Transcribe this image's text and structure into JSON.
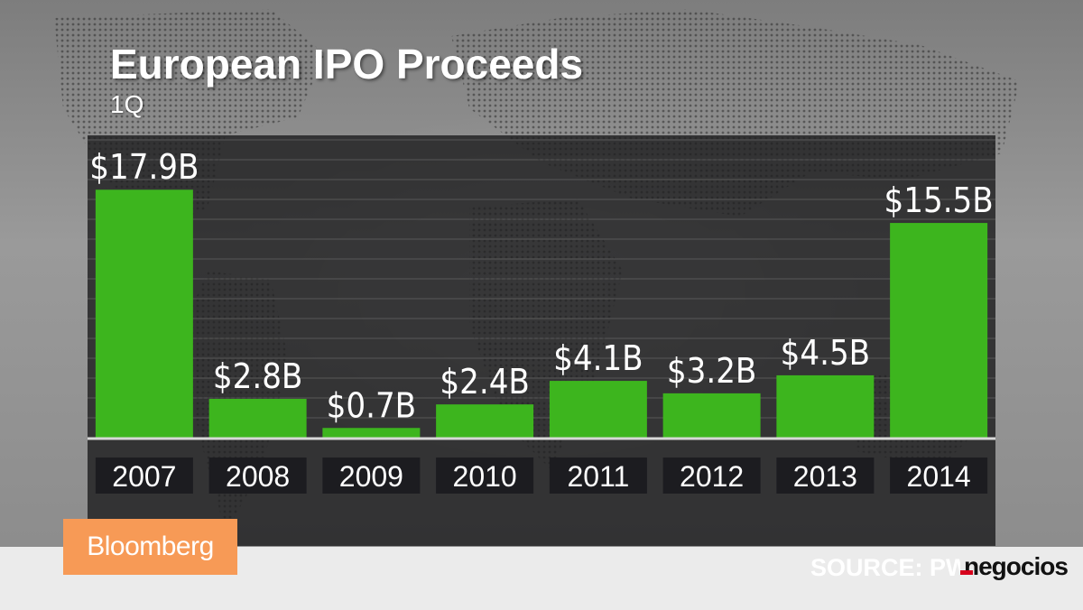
{
  "chart_data": {
    "type": "bar",
    "title": "European IPO Proceeds",
    "subtitle": "1Q",
    "categories": [
      "2007",
      "2008",
      "2009",
      "2010",
      "2011",
      "2012",
      "2013",
      "2014"
    ],
    "values": [
      17.9,
      2.8,
      0.7,
      2.4,
      4.1,
      3.2,
      4.5,
      15.5
    ],
    "data_labels": [
      "$17.9B",
      "$2.8B",
      "$0.7B",
      "$2.4B",
      "$4.1B",
      "$3.2B",
      "$4.5B",
      "$15.5B"
    ],
    "ylim": [
      0,
      20
    ],
    "grid": true,
    "colors": {
      "bar": "#3db51e",
      "label_bg": "#1c1c20"
    }
  },
  "branding": {
    "logo": "Bloomberg",
    "source": "SOURCE: PWC",
    "watermark": "negocios"
  }
}
